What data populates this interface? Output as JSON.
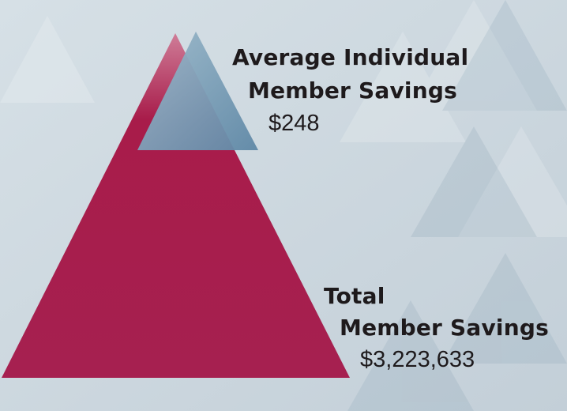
{
  "colors": {
    "background": "#cdd8df",
    "total_triangle": "#a91e4c",
    "average_triangle": "#6f96b1"
  },
  "average": {
    "title_line1": "Average Individual",
    "title_line2": "Member Savings",
    "value": "$248"
  },
  "total": {
    "title_line1": "Total",
    "title_line2": "Member Savings",
    "value": "$3,223,633"
  }
}
